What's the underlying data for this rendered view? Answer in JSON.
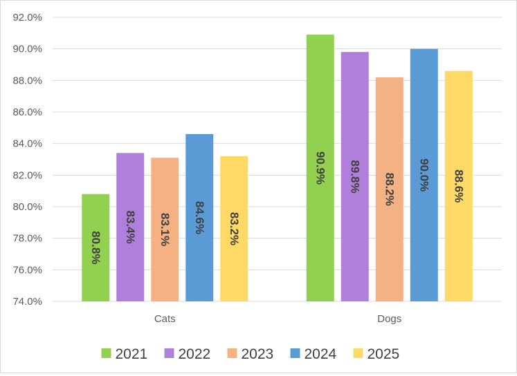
{
  "chart_data": {
    "type": "bar",
    "title": "",
    "xlabel": "",
    "ylabel": "",
    "categories": [
      "Cats",
      "Dogs"
    ],
    "ylim": [
      74.0,
      92.0
    ],
    "y_ticks": [
      "74.0%",
      "76.0%",
      "78.0%",
      "80.0%",
      "82.0%",
      "84.0%",
      "86.0%",
      "88.0%",
      "90.0%",
      "92.0%"
    ],
    "y_tick_values": [
      74,
      76,
      78,
      80,
      82,
      84,
      86,
      88,
      90,
      92
    ],
    "grid": true,
    "legend_position": "bottom",
    "series": [
      {
        "name": "2021",
        "color": "#92d050",
        "values": [
          80.8,
          90.9
        ],
        "labels": [
          "80.8%",
          "90.9%"
        ]
      },
      {
        "name": "2022",
        "color": "#b07fdb",
        "values": [
          83.4,
          89.8
        ],
        "labels": [
          "83.4%",
          "89.8%"
        ]
      },
      {
        "name": "2023",
        "color": "#f4b183",
        "values": [
          83.1,
          88.2
        ],
        "labels": [
          "83.1%",
          "88.2%"
        ]
      },
      {
        "name": "2024",
        "color": "#5b9bd5",
        "values": [
          84.6,
          90.0
        ],
        "labels": [
          "84.6%",
          "90.0%"
        ]
      },
      {
        "name": "2025",
        "color": "#ffd966",
        "values": [
          83.2,
          88.6
        ],
        "labels": [
          "83.2%",
          "88.6%"
        ]
      }
    ]
  }
}
